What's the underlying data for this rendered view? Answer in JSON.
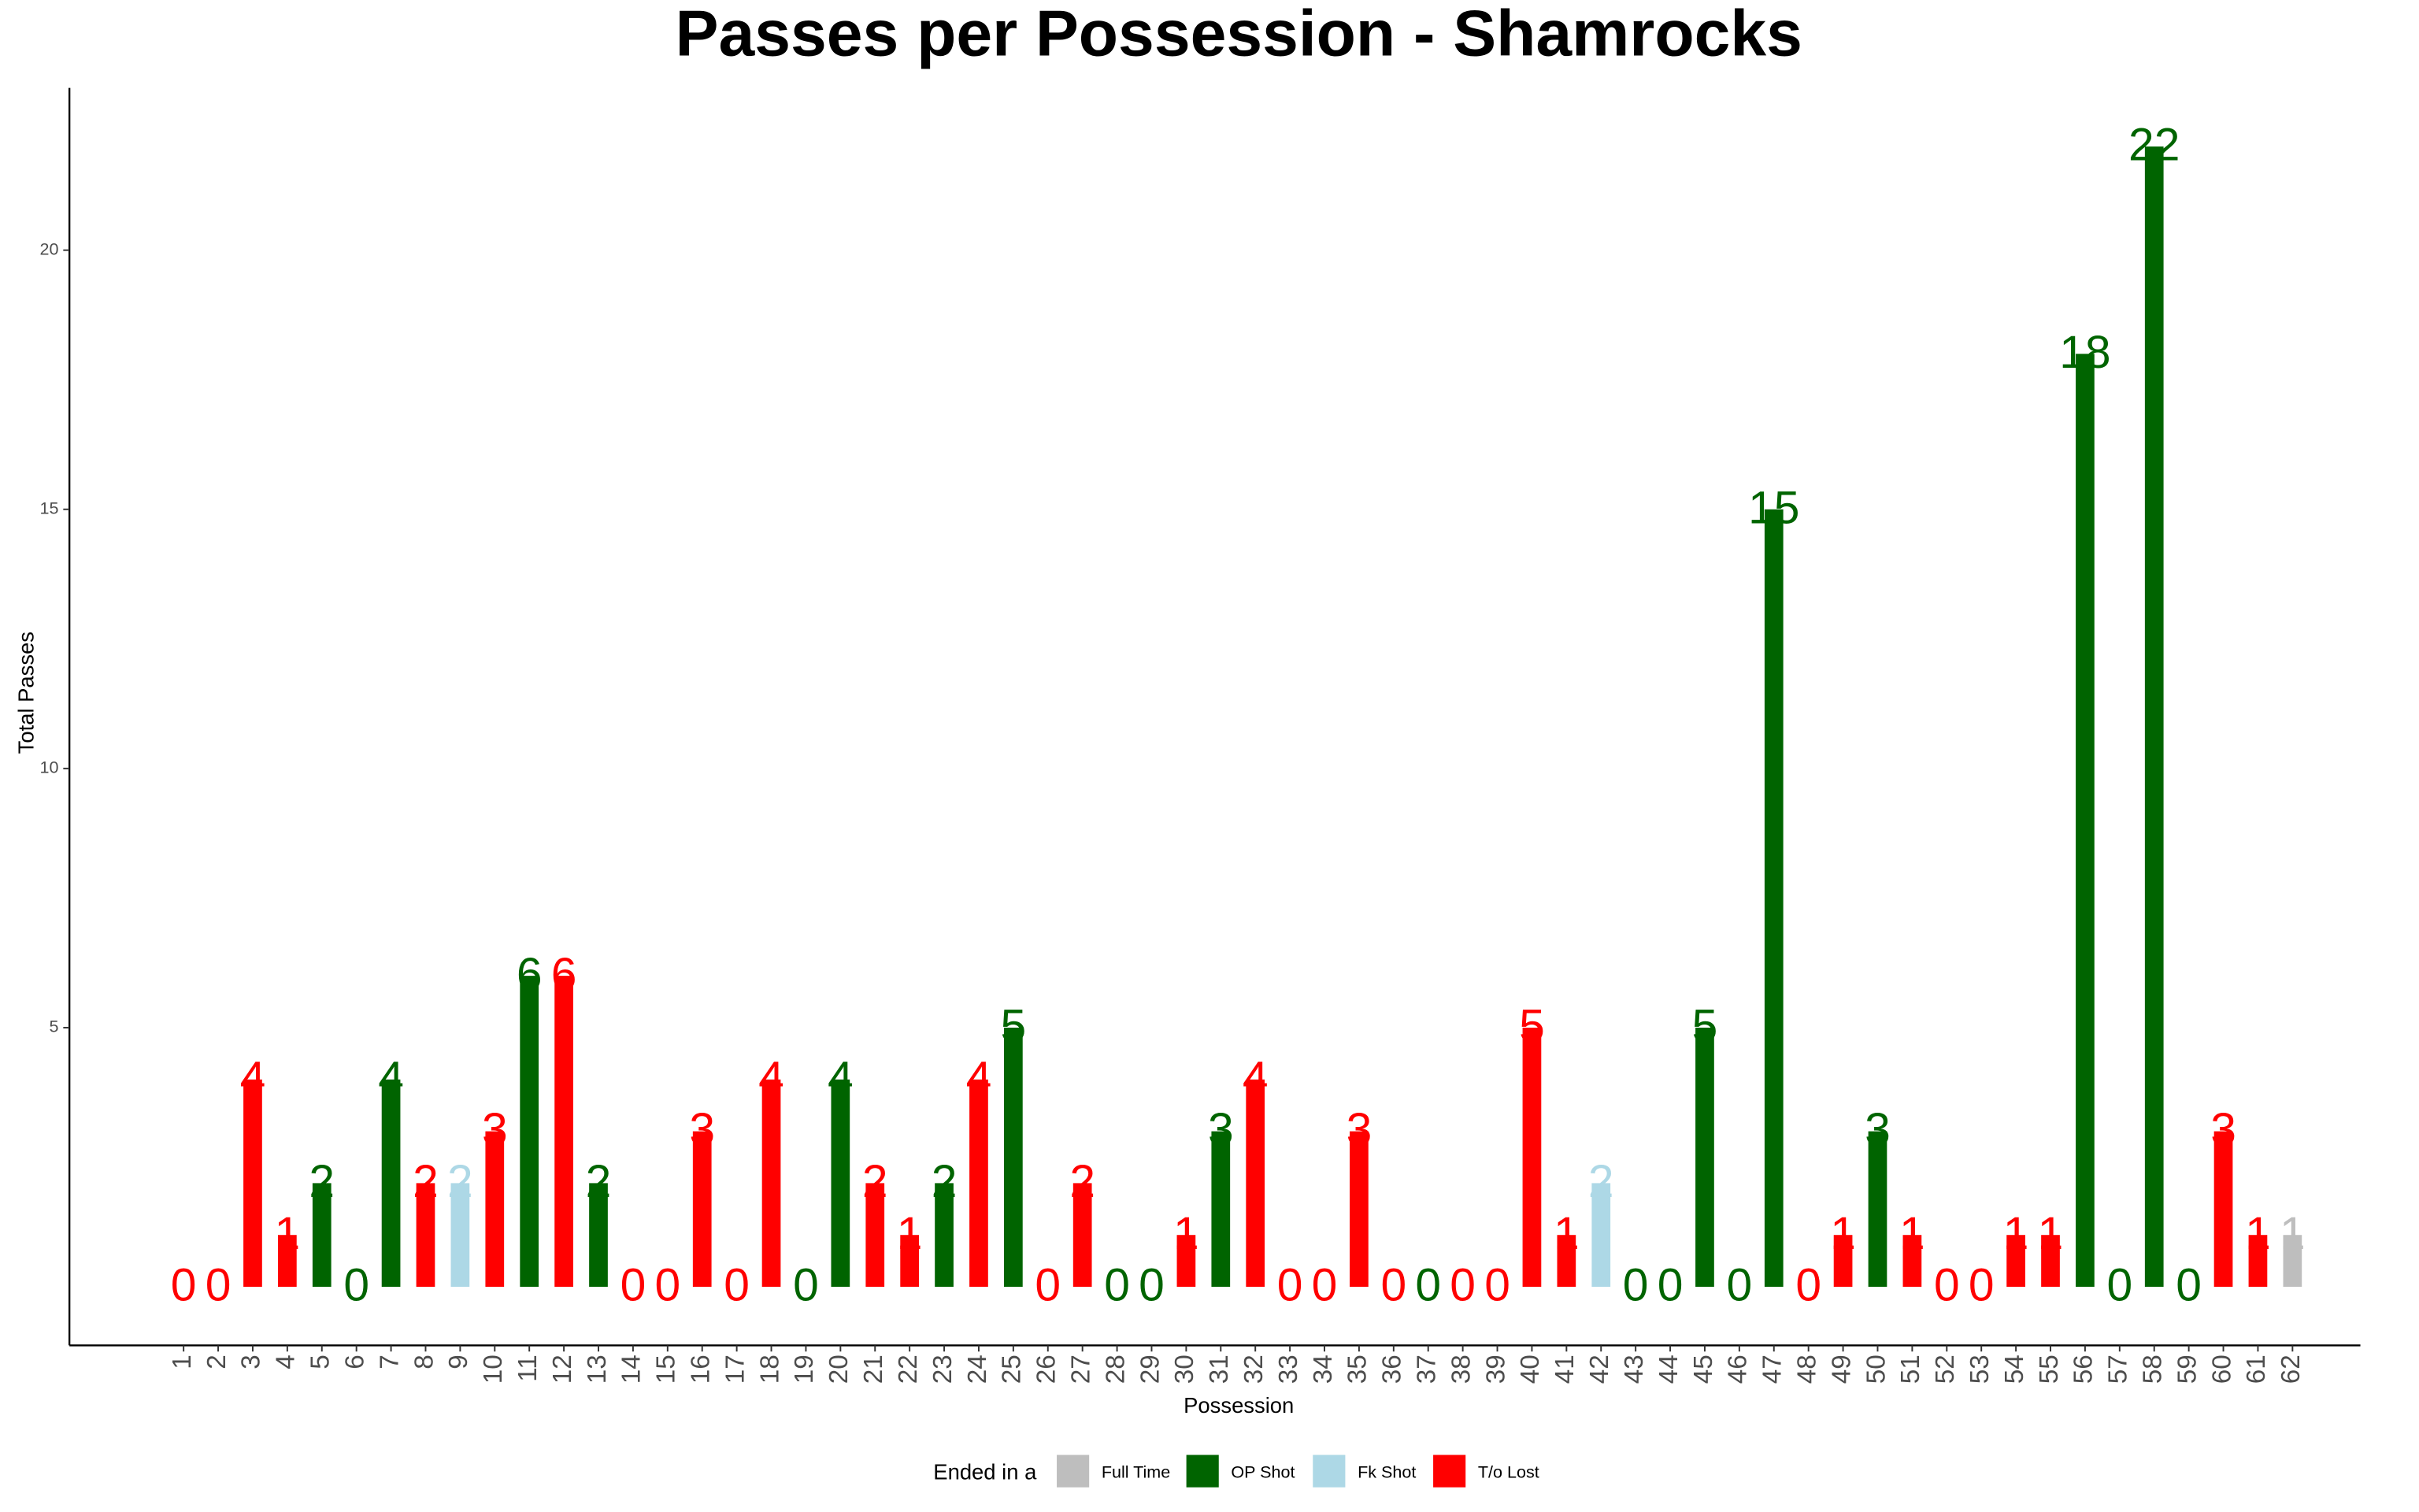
{
  "chart_data": {
    "type": "bar",
    "title": "Passes per Possession - Shamrocks",
    "x_label": "Possession",
    "y_label": "Total Passes",
    "legend_title": "Ended in a",
    "categories": [
      1,
      2,
      3,
      4,
      5,
      6,
      7,
      8,
      9,
      10,
      11,
      12,
      13,
      14,
      15,
      16,
      17,
      18,
      19,
      20,
      21,
      22,
      23,
      24,
      25,
      26,
      27,
      28,
      29,
      30,
      31,
      32,
      33,
      34,
      35,
      36,
      37,
      38,
      39,
      40,
      41,
      42,
      43,
      44,
      45,
      46,
      47,
      48,
      49,
      50,
      51,
      52,
      53,
      54,
      55,
      56,
      57,
      58,
      59,
      60,
      61,
      62
    ],
    "series": [
      {
        "name": "Full Time",
        "color": "#bebebe",
        "values": [
          null,
          null,
          null,
          null,
          null,
          null,
          null,
          null,
          null,
          null,
          null,
          null,
          null,
          null,
          null,
          null,
          null,
          null,
          null,
          null,
          null,
          null,
          null,
          null,
          null,
          null,
          null,
          null,
          null,
          null,
          null,
          null,
          null,
          null,
          null,
          null,
          null,
          null,
          null,
          null,
          null,
          null,
          null,
          null,
          null,
          null,
          null,
          null,
          null,
          null,
          null,
          null,
          null,
          null,
          null,
          null,
          null,
          null,
          null,
          null,
          null,
          1
        ]
      },
      {
        "name": "OP Shot",
        "color": "#006400",
        "values": [
          null,
          null,
          null,
          null,
          2,
          0,
          4,
          null,
          null,
          null,
          6,
          null,
          2,
          null,
          null,
          null,
          null,
          null,
          0,
          4,
          null,
          null,
          2,
          null,
          5,
          null,
          null,
          0,
          0,
          null,
          3,
          null,
          null,
          null,
          null,
          null,
          0,
          null,
          null,
          null,
          null,
          null,
          0,
          0,
          5,
          0,
          15,
          null,
          null,
          3,
          null,
          null,
          null,
          null,
          null,
          18,
          0,
          22,
          0,
          null,
          null,
          null
        ]
      },
      {
        "name": "Fk Shot",
        "color": "#add8e6",
        "values": [
          null,
          null,
          null,
          null,
          null,
          null,
          null,
          null,
          2,
          null,
          null,
          null,
          null,
          null,
          null,
          null,
          null,
          null,
          null,
          null,
          null,
          null,
          null,
          null,
          null,
          null,
          null,
          null,
          null,
          null,
          null,
          null,
          null,
          null,
          null,
          null,
          null,
          null,
          null,
          null,
          null,
          2,
          null,
          null,
          null,
          null,
          null,
          null,
          null,
          null,
          null,
          null,
          null,
          null,
          null,
          null,
          null,
          null,
          null,
          null,
          null,
          null
        ]
      },
      {
        "name": "T/o Lost",
        "color": "#ff0000",
        "values": [
          0,
          0,
          4,
          1,
          null,
          null,
          null,
          2,
          null,
          3,
          null,
          6,
          null,
          0,
          0,
          3,
          0,
          4,
          null,
          null,
          2,
          1,
          null,
          4,
          null,
          0,
          2,
          null,
          null,
          1,
          null,
          4,
          0,
          0,
          3,
          0,
          null,
          0,
          0,
          5,
          1,
          null,
          null,
          null,
          null,
          null,
          null,
          0,
          1,
          null,
          1,
          0,
          0,
          1,
          1,
          null,
          null,
          null,
          null,
          3,
          1,
          null
        ]
      }
    ],
    "ylim": [
      -1.13,
      23.13
    ],
    "yticks": [
      5,
      10,
      15,
      20
    ]
  }
}
